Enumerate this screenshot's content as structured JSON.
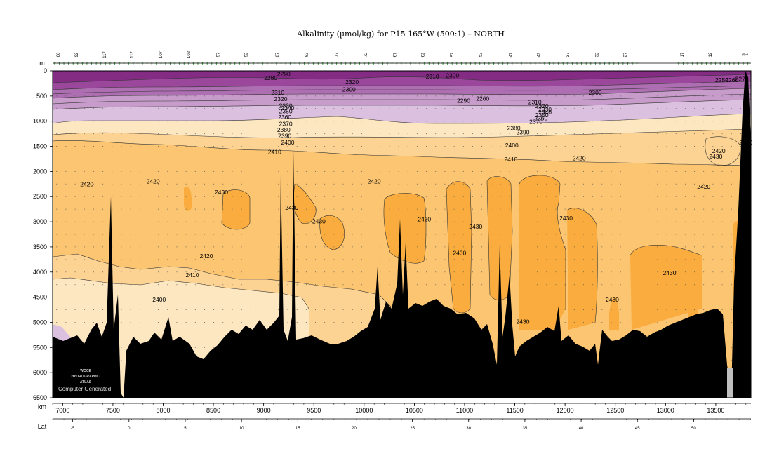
{
  "chart_data": {
    "type": "heatmap",
    "title": "Alkalinity (µmol/kg) for P15 165°W (500:1) – NORTH",
    "ylabel": "m",
    "xlabel": "km",
    "lat_label": "Lat",
    "xlim": [
      6900,
      13850
    ],
    "ylim": [
      0,
      6500
    ],
    "y_ticks": [
      0,
      500,
      1000,
      1500,
      2000,
      2500,
      3000,
      3500,
      4000,
      4500,
      5000,
      5500,
      6000,
      6500
    ],
    "x_ticks": [
      7000,
      7500,
      8000,
      8500,
      9000,
      9500,
      10000,
      10500,
      11000,
      11500,
      12000,
      12500,
      13000,
      13500
    ],
    "lat_ticks": [
      {
        "lat": "-5",
        "km": 7100
      },
      {
        "lat": "0",
        "km": 7660
      },
      {
        "lat": "5",
        "km": 8220
      },
      {
        "lat": "10",
        "km": 8780
      },
      {
        "lat": "15",
        "km": 9340
      },
      {
        "lat": "20",
        "km": 9900
      },
      {
        "lat": "25",
        "km": 10480
      },
      {
        "lat": "30",
        "km": 11040
      },
      {
        "lat": "35",
        "km": 11600
      },
      {
        "lat": "40",
        "km": 12160
      },
      {
        "lat": "45",
        "km": 12720
      },
      {
        "lat": "50",
        "km": 13280
      }
    ],
    "station_labels": [
      {
        "label": "66",
        "km": 6970
      },
      {
        "label": "92",
        "km": 7150
      },
      {
        "label": "117",
        "km": 7430
      },
      {
        "label": "112",
        "km": 7700
      },
      {
        "label": "107",
        "km": 7990
      },
      {
        "label": "102",
        "km": 8270
      },
      {
        "label": "97",
        "km": 8560
      },
      {
        "label": "92",
        "km": 8840
      },
      {
        "label": "87",
        "km": 9150
      },
      {
        "label": "82",
        "km": 9440
      },
      {
        "label": "77",
        "km": 9740
      },
      {
        "label": "72",
        "km": 10030
      },
      {
        "label": "67",
        "km": 10320
      },
      {
        "label": "62",
        "km": 10600
      },
      {
        "label": "57",
        "km": 10890
      },
      {
        "label": "52",
        "km": 11170
      },
      {
        "label": "47",
        "km": 11470
      },
      {
        "label": "42",
        "km": 11750
      },
      {
        "label": "37",
        "km": 12040
      },
      {
        "label": "32",
        "km": 12330
      },
      {
        "label": "27",
        "km": 12610
      },
      {
        "label": "17",
        "km": 13180
      },
      {
        "label": "12",
        "km": 13460
      },
      {
        "label": "5",
        "km": 13790
      },
      {
        "label": "1",
        "km": 13820
      }
    ],
    "contour_levels": [
      2250,
      2260,
      2270,
      2280,
      2290,
      2300,
      2310,
      2320,
      2330,
      2340,
      2350,
      2360,
      2370,
      2380,
      2390,
      2400,
      2410,
      2420,
      2430
    ],
    "contour_labels": [
      {
        "text": "2290",
        "km": 9200,
        "depth": 60
      },
      {
        "text": "2280",
        "km": 9070,
        "depth": 140
      },
      {
        "text": "2320",
        "km": 9880,
        "depth": 220
      },
      {
        "text": "2300",
        "km": 9850,
        "depth": 370
      },
      {
        "text": "2310",
        "km": 10680,
        "depth": 110
      },
      {
        "text": "2300",
        "km": 10880,
        "depth": 90
      },
      {
        "text": "2310",
        "km": 9140,
        "depth": 430
      },
      {
        "text": "2320",
        "km": 9170,
        "depth": 560
      },
      {
        "text": "2330",
        "km": 9220,
        "depth": 690
      },
      {
        "text": "2340",
        "km": 9240,
        "depth": 740
      },
      {
        "text": "2350",
        "km": 9220,
        "depth": 800
      },
      {
        "text": "2360",
        "km": 9210,
        "depth": 920
      },
      {
        "text": "2370",
        "km": 9220,
        "depth": 1050
      },
      {
        "text": "2380",
        "km": 9200,
        "depth": 1170
      },
      {
        "text": "2390",
        "km": 9210,
        "depth": 1290
      },
      {
        "text": "2400",
        "km": 9240,
        "depth": 1420
      },
      {
        "text": "2410",
        "km": 9110,
        "depth": 1610
      },
      {
        "text": "2260",
        "km": 11180,
        "depth": 550
      },
      {
        "text": "2290",
        "km": 10990,
        "depth": 590
      },
      {
        "text": "2310",
        "km": 11700,
        "depth": 620
      },
      {
        "text": "2320",
        "km": 11770,
        "depth": 700
      },
      {
        "text": "2330",
        "km": 11800,
        "depth": 770
      },
      {
        "text": "2340",
        "km": 11800,
        "depth": 820
      },
      {
        "text": "2350",
        "km": 11770,
        "depth": 880
      },
      {
        "text": "2360",
        "km": 11760,
        "depth": 940
      },
      {
        "text": "2370",
        "km": 11710,
        "depth": 1010
      },
      {
        "text": "2380",
        "km": 11490,
        "depth": 1140
      },
      {
        "text": "2390",
        "km": 11580,
        "depth": 1220
      },
      {
        "text": "2300",
        "km": 12300,
        "depth": 430
      },
      {
        "text": "2400",
        "km": 11470,
        "depth": 1480
      },
      {
        "text": "2410",
        "km": 11460,
        "depth": 1760
      },
      {
        "text": "2420",
        "km": 12140,
        "depth": 1740
      },
      {
        "text": "2250",
        "km": 13560,
        "depth": 180
      },
      {
        "text": "2260",
        "km": 13660,
        "depth": 180
      },
      {
        "text": "2270",
        "km": 13760,
        "depth": 160
      },
      {
        "text": "2410",
        "km": 13800,
        "depth": 1420
      },
      {
        "text": "2420",
        "km": 13530,
        "depth": 1590
      },
      {
        "text": "2430",
        "km": 13500,
        "depth": 1700
      },
      {
        "text": "2420",
        "km": 7240,
        "depth": 2250
      },
      {
        "text": "2420",
        "km": 7900,
        "depth": 2200
      },
      {
        "text": "2430",
        "km": 8580,
        "depth": 2410
      },
      {
        "text": "2430",
        "km": 9280,
        "depth": 2720
      },
      {
        "text": "2430",
        "km": 9550,
        "depth": 2990
      },
      {
        "text": "2420",
        "km": 10100,
        "depth": 2200
      },
      {
        "text": "2430",
        "km": 10600,
        "depth": 2950
      },
      {
        "text": "2430",
        "km": 11110,
        "depth": 3100
      },
      {
        "text": "2430",
        "km": 10950,
        "depth": 3620
      },
      {
        "text": "2430",
        "km": 12010,
        "depth": 2930
      },
      {
        "text": "2430",
        "km": 11580,
        "depth": 4990
      },
      {
        "text": "2430",
        "km": 12470,
        "depth": 4550
      },
      {
        "text": "2430",
        "km": 13040,
        "depth": 4020
      },
      {
        "text": "2420",
        "km": 13380,
        "depth": 2300
      },
      {
        "text": "2420",
        "km": 8430,
        "depth": 3680
      },
      {
        "text": "2410",
        "km": 8290,
        "depth": 4060
      },
      {
        "text": "2400",
        "km": 7960,
        "depth": 4550
      }
    ],
    "color_scale": {
      "levels_lt_2300": "#842c84",
      "2300_2320": "#9a479c",
      "2320_2340": "#ae6eb2",
      "2340_2380": "#c79cca",
      "2380_2400": "#dcc0e0",
      "2400_2410": "#fde7c0",
      "2410_2420": "#fcd392",
      "2420_2430": "#fbc571",
      "gt_2430": "#faad3e",
      "bottom": "#000000"
    },
    "watermark": [
      "WOCE",
      "HYDROGRAPHIC",
      "ATLAS"
    ],
    "footer_note": "Computer Generated"
  }
}
